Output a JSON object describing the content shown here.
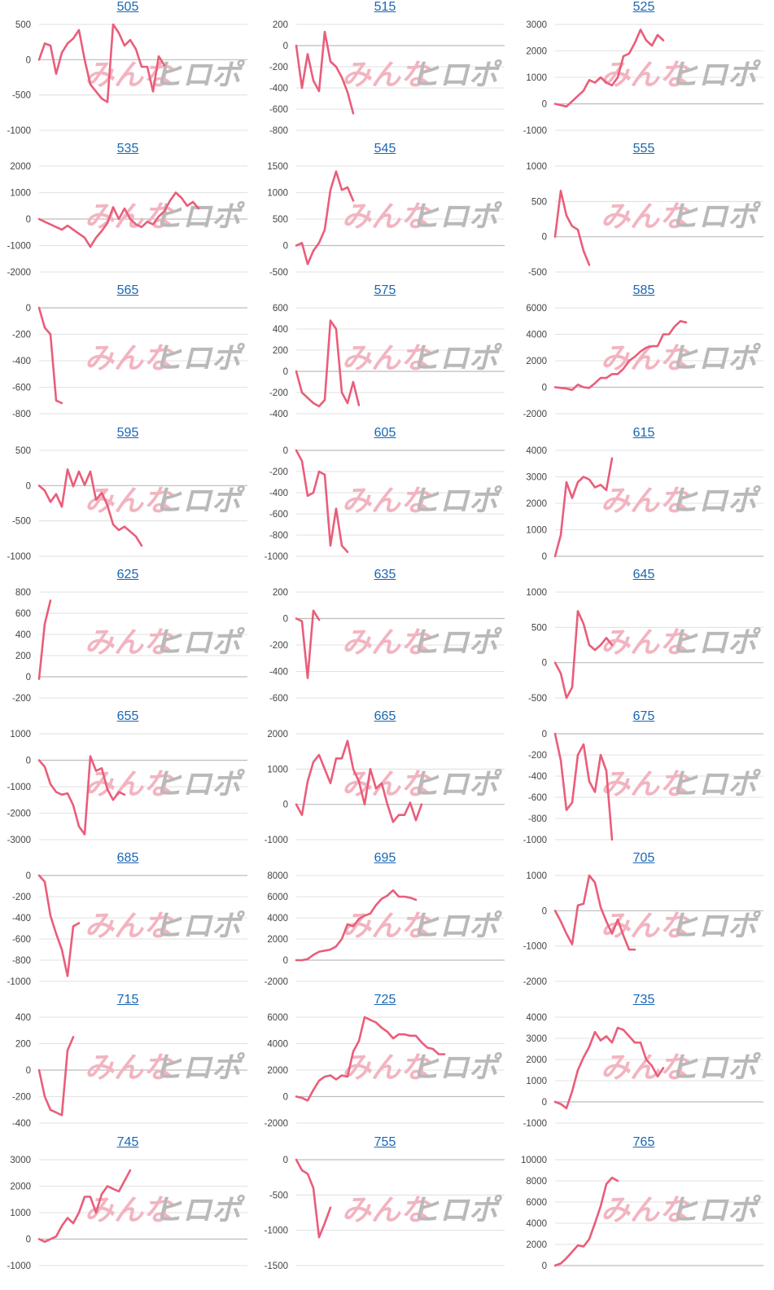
{
  "page": {
    "watermark": {
      "left": "みんな",
      "right": "ヒロポ"
    },
    "colors": {
      "line": "#ea5d7a",
      "grid": "#d9d9d9",
      "axis": "#bcbcbc",
      "tick": "#444444",
      "title": "#1a66b3"
    }
  },
  "chart_data": [
    {
      "type": "line",
      "title": "505",
      "ylim": [
        -1000,
        500
      ],
      "yticks": [
        -1000,
        -500,
        0,
        500
      ],
      "values": [
        0,
        230,
        200,
        -200,
        100,
        230,
        300,
        420,
        0,
        -350,
        -450,
        -550,
        -600,
        500,
        380,
        200,
        280,
        150,
        -100,
        -100,
        -450,
        50,
        -80
      ]
    },
    {
      "type": "line",
      "title": "515",
      "ylim": [
        -800,
        200
      ],
      "yticks": [
        -800,
        -600,
        -400,
        -200,
        0,
        200
      ],
      "values": [
        0,
        -400,
        -80,
        -330,
        -430,
        130,
        -150,
        -200,
        -300,
        -440,
        -640
      ]
    },
    {
      "type": "line",
      "title": "525",
      "ylim": [
        -1000,
        3000
      ],
      "yticks": [
        -1000,
        0,
        1000,
        2000,
        3000
      ],
      "values": [
        0,
        -50,
        -100,
        100,
        300,
        500,
        900,
        800,
        1000,
        800,
        700,
        1000,
        1800,
        1900,
        2300,
        2800,
        2400,
        2200,
        2600,
        2400
      ]
    },
    {
      "type": "line",
      "title": "535",
      "ylim": [
        -2000,
        2000
      ],
      "yticks": [
        -2000,
        -1000,
        0,
        1000,
        2000
      ],
      "values": [
        0,
        -100,
        -200,
        -300,
        -400,
        -250,
        -400,
        -550,
        -700,
        -1050,
        -700,
        -450,
        -150,
        450,
        0,
        400,
        0,
        -200,
        -300,
        -100,
        -200,
        100,
        300,
        700,
        1000,
        800,
        500,
        650,
        400
      ]
    },
    {
      "type": "line",
      "title": "545",
      "ylim": [
        -500,
        1500
      ],
      "yticks": [
        -500,
        0,
        500,
        1000,
        1500
      ],
      "values": [
        0,
        50,
        -350,
        -100,
        50,
        300,
        1050,
        1400,
        1050,
        1100,
        850
      ]
    },
    {
      "type": "line",
      "title": "555",
      "ylim": [
        -500,
        1000
      ],
      "yticks": [
        -500,
        0,
        500,
        1000
      ],
      "values": [
        0,
        650,
        300,
        150,
        100,
        -200,
        -400
      ]
    },
    {
      "type": "line",
      "title": "565",
      "ylim": [
        -800,
        0
      ],
      "yticks": [
        -800,
        -600,
        -400,
        -200,
        0
      ],
      "values": [
        0,
        -150,
        -200,
        -700,
        -720
      ]
    },
    {
      "type": "line",
      "title": "575",
      "ylim": [
        -400,
        600
      ],
      "yticks": [
        -400,
        -200,
        0,
        200,
        400,
        600
      ],
      "values": [
        0,
        -200,
        -250,
        -300,
        -330,
        -270,
        480,
        400,
        -200,
        -300,
        -100,
        -320
      ]
    },
    {
      "type": "line",
      "title": "585",
      "ylim": [
        -2000,
        6000
      ],
      "yticks": [
        -2000,
        0,
        2000,
        4000,
        6000
      ],
      "values": [
        0,
        -50,
        -100,
        -200,
        200,
        0,
        -50,
        300,
        700,
        700,
        1000,
        1000,
        1400,
        2000,
        2300,
        2700,
        3000,
        3100,
        3100,
        4000,
        4000,
        4600,
        5000,
        4900
      ]
    },
    {
      "type": "line",
      "title": "595",
      "ylim": [
        -1000,
        500
      ],
      "yticks": [
        -1000,
        -500,
        0,
        500
      ],
      "values": [
        0,
        -70,
        -230,
        -120,
        -300,
        230,
        -10,
        200,
        10,
        200,
        -200,
        -100,
        -280,
        -550,
        -630,
        -580,
        -650,
        -720,
        -850
      ]
    },
    {
      "type": "line",
      "title": "605",
      "ylim": [
        -1000,
        0
      ],
      "yticks": [
        -1000,
        -800,
        -600,
        -400,
        -200,
        0
      ],
      "values": [
        0,
        -100,
        -430,
        -400,
        -200,
        -230,
        -900,
        -550,
        -900,
        -960
      ]
    },
    {
      "type": "line",
      "title": "615",
      "ylim": [
        0,
        4000
      ],
      "yticks": [
        0,
        1000,
        2000,
        3000,
        4000
      ],
      "values": [
        0,
        800,
        2800,
        2200,
        2800,
        3000,
        2900,
        2600,
        2700,
        2500,
        3700
      ]
    },
    {
      "type": "line",
      "title": "625",
      "ylim": [
        -200,
        800
      ],
      "yticks": [
        -200,
        0,
        200,
        400,
        600,
        800
      ],
      "values": [
        -20,
        500,
        720
      ]
    },
    {
      "type": "line",
      "title": "635",
      "ylim": [
        -600,
        200
      ],
      "yticks": [
        -600,
        -400,
        -200,
        0,
        200
      ],
      "values": [
        0,
        -20,
        -450,
        60,
        -10
      ]
    },
    {
      "type": "line",
      "title": "645",
      "ylim": [
        -500,
        1000
      ],
      "yticks": [
        -500,
        0,
        500,
        1000
      ],
      "values": [
        0,
        -150,
        -500,
        -350,
        730,
        550,
        250,
        180,
        250,
        350,
        250
      ]
    },
    {
      "type": "line",
      "title": "655",
      "ylim": [
        -3000,
        1000
      ],
      "yticks": [
        -3000,
        -2000,
        -1000,
        0,
        1000
      ],
      "values": [
        0,
        -250,
        -900,
        -1200,
        -1300,
        -1250,
        -1700,
        -2500,
        -2800,
        150,
        -400,
        -300,
        -1100,
        -1500,
        -1200,
        -1300
      ]
    },
    {
      "type": "line",
      "title": "665",
      "ylim": [
        -1000,
        2000
      ],
      "yticks": [
        -1000,
        0,
        1000,
        2000
      ],
      "values": [
        0,
        -300,
        650,
        1200,
        1400,
        1000,
        600,
        1300,
        1300,
        1800,
        1000,
        650,
        0,
        1000,
        450,
        600,
        0,
        -500,
        -300,
        -300,
        50,
        -450,
        0
      ]
    },
    {
      "type": "line",
      "title": "675",
      "ylim": [
        -1000,
        0
      ],
      "yticks": [
        -1000,
        -800,
        -600,
        -400,
        -200,
        0
      ],
      "values": [
        0,
        -250,
        -720,
        -650,
        -200,
        -100,
        -450,
        -550,
        -200,
        -350,
        -1000
      ]
    },
    {
      "type": "line",
      "title": "685",
      "ylim": [
        -1000,
        0
      ],
      "yticks": [
        -1000,
        -800,
        -600,
        -400,
        -200,
        0
      ],
      "values": [
        0,
        -60,
        -380,
        -550,
        -700,
        -950,
        -480,
        -450
      ]
    },
    {
      "type": "line",
      "title": "695",
      "ylim": [
        -2000,
        8000
      ],
      "yticks": [
        -2000,
        0,
        2000,
        4000,
        6000,
        8000
      ],
      "values": [
        0,
        0,
        100,
        500,
        800,
        900,
        1000,
        1300,
        2000,
        3400,
        3200,
        3900,
        4200,
        4400,
        5200,
        5800,
        6100,
        6600,
        6000,
        6000,
        5900,
        5700
      ]
    },
    {
      "type": "line",
      "title": "705",
      "ylim": [
        -2000,
        1000
      ],
      "yticks": [
        -2000,
        -1000,
        0,
        1000
      ],
      "values": [
        0,
        -300,
        -650,
        -950,
        150,
        200,
        1000,
        800,
        100,
        -300,
        -650,
        -250,
        -700,
        -1100,
        -1100
      ]
    },
    {
      "type": "line",
      "title": "715",
      "ylim": [
        -400,
        400
      ],
      "yticks": [
        -400,
        -200,
        0,
        200,
        400
      ],
      "values": [
        0,
        -200,
        -300,
        -320,
        -340,
        150,
        250
      ]
    },
    {
      "type": "line",
      "title": "725",
      "ylim": [
        -2000,
        6000
      ],
      "yticks": [
        -2000,
        0,
        2000,
        4000,
        6000
      ],
      "values": [
        0,
        -100,
        -300,
        500,
        1200,
        1500,
        1600,
        1300,
        1600,
        1500,
        3400,
        4200,
        6000,
        5800,
        5600,
        5200,
        4900,
        4400,
        4700,
        4700,
        4600,
        4600,
        4100,
        3700,
        3600,
        3200,
        3200
      ]
    },
    {
      "type": "line",
      "title": "735",
      "ylim": [
        -1000,
        4000
      ],
      "yticks": [
        -1000,
        0,
        1000,
        2000,
        3000,
        4000
      ],
      "values": [
        0,
        -100,
        -300,
        500,
        1500,
        2100,
        2600,
        3300,
        2900,
        3100,
        2800,
        3500,
        3400,
        3100,
        2800,
        2800,
        2000,
        1700,
        1200,
        1600
      ]
    },
    {
      "type": "line",
      "title": "745",
      "ylim": [
        -1000,
        3000
      ],
      "yticks": [
        -1000,
        0,
        1000,
        2000,
        3000
      ],
      "values": [
        0,
        -100,
        0,
        100,
        500,
        800,
        600,
        1000,
        1600,
        1600,
        1000,
        1700,
        2000,
        1900,
        1800,
        2200,
        2600
      ]
    },
    {
      "type": "line",
      "title": "755",
      "ylim": [
        -1500,
        0
      ],
      "yticks": [
        -1500,
        -1000,
        -500,
        0
      ],
      "values": [
        0,
        -150,
        -200,
        -400,
        -1100,
        -900,
        -680
      ]
    },
    {
      "type": "line",
      "title": "765",
      "ylim": [
        0,
        10000
      ],
      "yticks": [
        0,
        2000,
        4000,
        6000,
        8000,
        10000
      ],
      "values": [
        0,
        200,
        700,
        1300,
        1900,
        1800,
        2500,
        4000,
        5600,
        7700,
        8300,
        8000
      ]
    }
  ]
}
